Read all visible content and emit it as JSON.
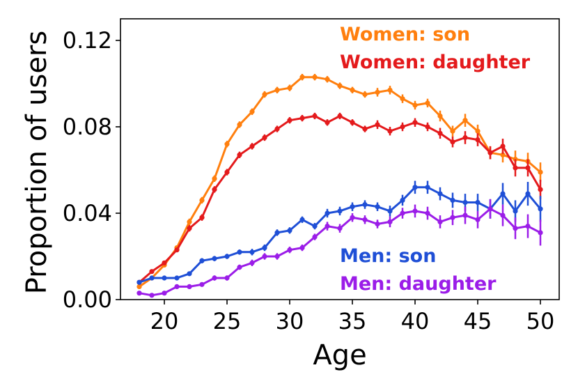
{
  "chart_data": {
    "type": "line",
    "title": "",
    "xlabel": "Age",
    "ylabel": "Proportion of users",
    "xlim": [
      16.5,
      51.5
    ],
    "ylim": [
      0,
      0.13
    ],
    "x_ticks": [
      20,
      25,
      30,
      35,
      40,
      45,
      50
    ],
    "x_tick_labels": [
      "20",
      "25",
      "30",
      "35",
      "40",
      "45",
      "50"
    ],
    "y_ticks": [
      0,
      0.04,
      0.08,
      0.12
    ],
    "y_tick_labels": [
      "0.00",
      "0.04",
      "0.08",
      "0.12"
    ],
    "grid": false,
    "legend_position": "top-right and lower-middle (inline text labels)",
    "x": [
      18,
      19,
      20,
      21,
      22,
      23,
      24,
      25,
      26,
      27,
      28,
      29,
      30,
      31,
      32,
      33,
      34,
      35,
      36,
      37,
      38,
      39,
      40,
      41,
      42,
      43,
      44,
      45,
      46,
      47,
      48,
      49,
      50
    ],
    "series": [
      {
        "name": "Women: son",
        "color": "#ff7f0e",
        "values": [
          0.006,
          0.01,
          0.016,
          0.024,
          0.036,
          0.046,
          0.056,
          0.072,
          0.081,
          0.087,
          0.095,
          0.097,
          0.098,
          0.103,
          0.103,
          0.102,
          0.099,
          0.097,
          0.095,
          0.096,
          0.097,
          0.093,
          0.09,
          0.091,
          0.085,
          0.078,
          0.083,
          0.078,
          0.068,
          0.067,
          0.065,
          0.064,
          0.059
        ],
        "errors": [
          0.001,
          0.001,
          0.001,
          0.001,
          0.0015,
          0.0015,
          0.0015,
          0.0015,
          0.0015,
          0.0015,
          0.0015,
          0.0015,
          0.0015,
          0.0015,
          0.0015,
          0.0015,
          0.0015,
          0.0015,
          0.0015,
          0.002,
          0.002,
          0.002,
          0.002,
          0.002,
          0.0025,
          0.0025,
          0.003,
          0.003,
          0.003,
          0.0035,
          0.004,
          0.004,
          0.0045
        ]
      },
      {
        "name": "Women: daughter",
        "color": "#e41a1c",
        "values": [
          0.008,
          0.013,
          0.017,
          0.023,
          0.033,
          0.038,
          0.051,
          0.059,
          0.067,
          0.071,
          0.075,
          0.079,
          0.083,
          0.084,
          0.085,
          0.082,
          0.085,
          0.082,
          0.079,
          0.081,
          0.078,
          0.08,
          0.082,
          0.08,
          0.077,
          0.073,
          0.075,
          0.074,
          0.068,
          0.071,
          0.061,
          0.061,
          0.051
        ],
        "errors": [
          0.001,
          0.001,
          0.001,
          0.001,
          0.0015,
          0.0015,
          0.0015,
          0.0015,
          0.0015,
          0.0015,
          0.0015,
          0.0015,
          0.0015,
          0.0015,
          0.0015,
          0.0015,
          0.0015,
          0.0015,
          0.0015,
          0.002,
          0.002,
          0.002,
          0.002,
          0.002,
          0.0025,
          0.0025,
          0.003,
          0.003,
          0.003,
          0.0035,
          0.004,
          0.004,
          0.0045
        ]
      },
      {
        "name": "Men: son",
        "color": "#1f4fd6",
        "values": [
          0.008,
          0.01,
          0.01,
          0.01,
          0.012,
          0.018,
          0.019,
          0.02,
          0.022,
          0.022,
          0.024,
          0.031,
          0.032,
          0.037,
          0.034,
          0.04,
          0.041,
          0.043,
          0.044,
          0.043,
          0.041,
          0.046,
          0.052,
          0.052,
          0.049,
          0.046,
          0.045,
          0.045,
          0.042,
          0.049,
          0.041,
          0.049,
          0.042
        ],
        "errors": [
          0.001,
          0.001,
          0.001,
          0.001,
          0.001,
          0.0012,
          0.0012,
          0.0012,
          0.0012,
          0.0015,
          0.0015,
          0.0015,
          0.0015,
          0.0015,
          0.0015,
          0.002,
          0.002,
          0.002,
          0.002,
          0.002,
          0.0025,
          0.0025,
          0.003,
          0.003,
          0.003,
          0.0035,
          0.004,
          0.004,
          0.0045,
          0.005,
          0.005,
          0.0055,
          0.006
        ]
      },
      {
        "name": "Men: daughter",
        "color": "#9b1de8",
        "values": [
          0.003,
          0.002,
          0.003,
          0.006,
          0.006,
          0.007,
          0.01,
          0.01,
          0.015,
          0.017,
          0.02,
          0.02,
          0.023,
          0.024,
          0.029,
          0.034,
          0.033,
          0.038,
          0.037,
          0.035,
          0.036,
          0.04,
          0.041,
          0.04,
          0.036,
          0.038,
          0.039,
          0.037,
          0.042,
          0.039,
          0.033,
          0.034,
          0.031
        ],
        "errors": [
          0.0008,
          0.0008,
          0.0008,
          0.001,
          0.001,
          0.001,
          0.0012,
          0.0012,
          0.0012,
          0.0015,
          0.0015,
          0.0015,
          0.0015,
          0.0015,
          0.0015,
          0.002,
          0.002,
          0.002,
          0.002,
          0.002,
          0.0025,
          0.0025,
          0.003,
          0.003,
          0.003,
          0.0035,
          0.004,
          0.004,
          0.0045,
          0.005,
          0.005,
          0.0055,
          0.006
        ]
      }
    ]
  }
}
